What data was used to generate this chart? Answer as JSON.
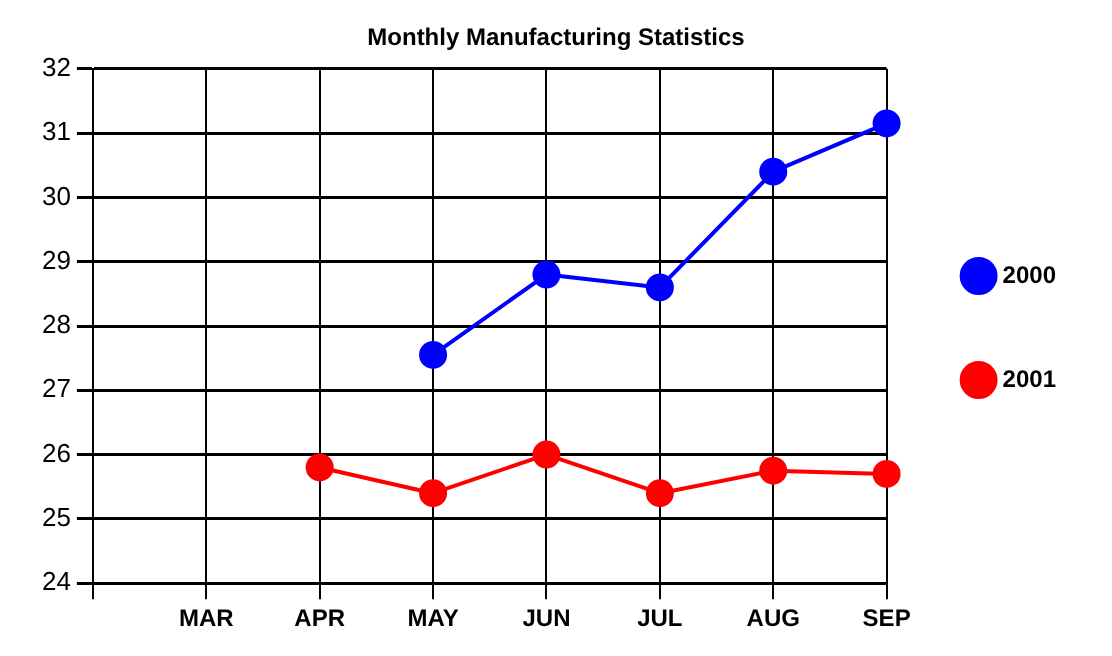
{
  "chart_data": {
    "type": "line",
    "title": "Monthly Manufacturing Statistics",
    "categories": [
      null,
      "MAR",
      "APR",
      "MAY",
      "JUN",
      "JUL",
      "AUG",
      "SEP"
    ],
    "series": [
      {
        "name": "2000",
        "color": "#0000ff",
        "values": [
          null,
          null,
          null,
          27.55,
          28.8,
          28.6,
          30.4,
          31.15
        ]
      },
      {
        "name": "2001",
        "color": "#ff0000",
        "values": [
          null,
          null,
          25.8,
          25.4,
          26.0,
          25.4,
          25.75,
          25.7
        ]
      }
    ],
    "ylim": [
      24,
      32
    ],
    "yticks": [
      24,
      25,
      26,
      27,
      28,
      29,
      30,
      31,
      32
    ],
    "grid": true,
    "legend": "right",
    "marker": "circle",
    "line_style": "solid"
  }
}
